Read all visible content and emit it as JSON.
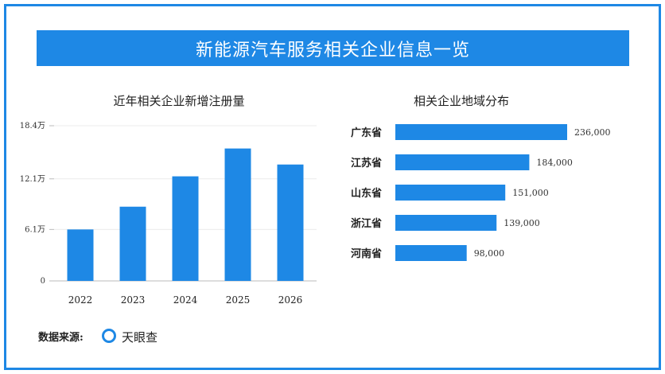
{
  "banner": {
    "title": "新能源汽车服务相关企业信息一览"
  },
  "colors": {
    "accent": "#1e88e5",
    "bar": "#1e88e5"
  },
  "chart_data": [
    {
      "type": "bar",
      "orientation": "vertical",
      "title": "近年相关企业新增注册量",
      "categories": [
        "2022",
        "2023",
        "2024",
        "2025",
        "2026"
      ],
      "values": [
        61000,
        88000,
        124000,
        157000,
        138000
      ],
      "yticks": [
        "0",
        "6.1万",
        "12.1万",
        "18.4万"
      ],
      "ylim": [
        0,
        184000
      ],
      "grid": true
    },
    {
      "type": "bar",
      "orientation": "horizontal",
      "title": "相关企业地域分布",
      "categories": [
        "广东省",
        "江苏省",
        "山东省",
        "浙江省",
        "河南省"
      ],
      "values": [
        236000,
        184000,
        151000,
        139000,
        98000
      ],
      "labels": [
        "236,000",
        "184,000",
        "151,000",
        "139,000",
        "98,000"
      ]
    }
  ],
  "footer": {
    "source_label": "数据来源:",
    "source_name": "天眼查",
    "logo_icon": "ring-logo-icon"
  }
}
